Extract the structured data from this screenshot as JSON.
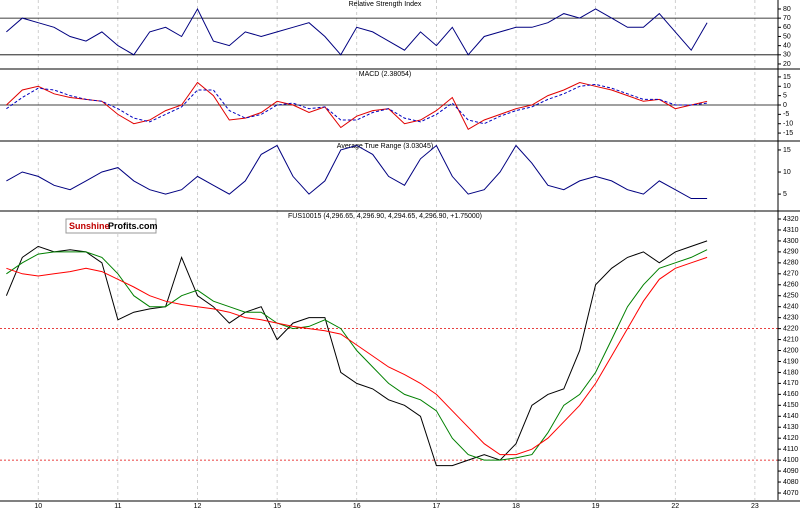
{
  "logo": {
    "part1": "Sunshine",
    "part2": "Profits.com"
  },
  "chart_data": [
    {
      "type": "line",
      "title": "Relative Strength Index",
      "xlim": [
        -0.48,
        9.29
      ],
      "ylim": [
        15.6,
        89.8
      ],
      "yticks": [
        20,
        30,
        40,
        50,
        60,
        70,
        80
      ],
      "levels": [
        70,
        30
      ],
      "x": [
        -0.4,
        -0.2,
        0,
        0.2,
        0.4,
        0.6,
        0.8,
        1,
        1.2,
        1.4,
        1.6,
        1.8,
        2,
        2.2,
        2.4,
        2.6,
        2.8,
        3,
        3.2,
        3.4,
        3.6,
        3.8,
        4,
        4.2,
        4.4,
        4.6,
        4.8,
        5,
        5.2,
        5.4,
        5.6,
        5.8,
        6,
        6.2,
        6.4,
        6.6,
        6.8,
        7,
        7.2,
        7.4,
        7.6,
        7.8,
        8,
        8.2,
        8.4
      ],
      "series": [
        {
          "color": "#000080",
          "values": [
            55,
            70,
            65,
            60,
            50,
            45,
            55,
            40,
            30,
            55,
            60,
            50,
            80,
            45,
            40,
            55,
            50,
            55,
            60,
            65,
            50,
            30,
            60,
            55,
            45,
            35,
            55,
            40,
            60,
            30,
            50,
            55,
            60,
            60,
            65,
            75,
            70,
            80,
            70,
            60,
            60,
            75,
            55,
            35,
            65
          ]
        }
      ]
    },
    {
      "type": "line",
      "title": "MACD (2.38054)",
      "xlim": [
        -0.48,
        9.29
      ],
      "ylim": [
        -18.7,
        18.7
      ],
      "yticks": [
        -15,
        -10,
        -5,
        0,
        5,
        10,
        15
      ],
      "levels": [
        0
      ],
      "x": [
        -0.4,
        -0.2,
        0,
        0.2,
        0.4,
        0.6,
        0.8,
        1,
        1.2,
        1.4,
        1.6,
        1.8,
        2,
        2.2,
        2.4,
        2.6,
        2.8,
        3,
        3.2,
        3.4,
        3.6,
        3.8,
        4,
        4.2,
        4.4,
        4.6,
        4.8,
        5,
        5.2,
        5.4,
        5.6,
        5.8,
        6,
        6.2,
        6.4,
        6.6,
        6.8,
        7,
        7.2,
        7.4,
        7.6,
        7.8,
        8,
        8.2,
        8.4
      ],
      "series": [
        {
          "color": "#e00000",
          "values": [
            0,
            8,
            10,
            6,
            4,
            3,
            2,
            -5,
            -10,
            -8,
            -3,
            0,
            12,
            5,
            -8,
            -7,
            -4,
            2,
            0,
            -4,
            -1,
            -12,
            -6,
            -3,
            -2,
            -10,
            -8,
            -3,
            4,
            -13,
            -8,
            -5,
            -2,
            0,
            5,
            8,
            12,
            10,
            8,
            5,
            2,
            3,
            -2,
            0,
            2
          ]
        },
        {
          "color": "#0000c0",
          "dash": true,
          "values": [
            -2,
            4,
            9,
            8,
            5,
            3,
            2,
            -2,
            -7,
            -9,
            -5,
            -1,
            8,
            8,
            -3,
            -7,
            -5,
            0,
            1,
            -2,
            -1,
            -8,
            -8,
            -4,
            -2,
            -7,
            -9,
            -5,
            1,
            -8,
            -10,
            -6,
            -3,
            -1,
            3,
            6,
            10,
            11,
            9,
            6,
            3,
            3,
            0,
            0,
            1
          ]
        }
      ]
    },
    {
      "type": "line",
      "title": "Average True Range (3.03045)",
      "xlim": [
        -0.48,
        9.29
      ],
      "ylim": [
        1.4,
        16.8
      ],
      "yticks": [
        5,
        10,
        15
      ],
      "x": [
        -0.4,
        -0.2,
        0,
        0.2,
        0.4,
        0.6,
        0.8,
        1,
        1.2,
        1.4,
        1.6,
        1.8,
        2,
        2.2,
        2.4,
        2.6,
        2.8,
        3,
        3.2,
        3.4,
        3.6,
        3.8,
        4,
        4.2,
        4.4,
        4.6,
        4.8,
        5,
        5.2,
        5.4,
        5.6,
        5.8,
        6,
        6.2,
        6.4,
        6.6,
        6.8,
        7,
        7.2,
        7.4,
        7.6,
        7.8,
        8,
        8.2,
        8.4
      ],
      "series": [
        {
          "color": "#000080",
          "values": [
            8,
            10,
            9,
            7,
            6,
            8,
            10,
            11,
            8,
            6,
            5,
            6,
            9,
            7,
            5,
            8,
            14,
            16,
            9,
            5,
            8,
            15,
            16,
            14,
            9,
            7,
            13,
            16,
            9,
            5,
            6,
            10,
            16,
            12,
            7,
            6,
            8,
            9,
            8,
            6,
            5,
            8,
            6,
            4,
            4
          ]
        }
      ]
    },
    {
      "type": "line",
      "title": "FUS10015 (4,296.65, 4,296.90, 4,294.65, 4,296.90, +1.75000)",
      "xlim": [
        -0.48,
        9.29
      ],
      "ylim": [
        4063.6,
        4326.4
      ],
      "yticks": [
        4070,
        4080,
        4090,
        4100,
        4110,
        4120,
        4130,
        4140,
        4150,
        4160,
        4170,
        4180,
        4190,
        4200,
        4210,
        4220,
        4230,
        4240,
        4250,
        4260,
        4270,
        4280,
        4290,
        4300,
        4310,
        4320
      ],
      "levels": [
        4220,
        4100
      ],
      "level_color": "#e00000",
      "xticks": [
        {
          "value": 0,
          "label": "10"
        },
        {
          "value": 1,
          "label": "11"
        },
        {
          "value": 2,
          "label": "12"
        },
        {
          "value": 3,
          "label": "15"
        },
        {
          "value": 4,
          "label": "16"
        },
        {
          "value": 5,
          "label": "17"
        },
        {
          "value": 6,
          "label": "18"
        },
        {
          "value": 7,
          "label": "19"
        },
        {
          "value": 8,
          "label": "22"
        },
        {
          "value": 9,
          "label": "23"
        }
      ],
      "x": [
        -0.4,
        -0.2,
        0,
        0.2,
        0.4,
        0.6,
        0.8,
        1,
        1.2,
        1.4,
        1.6,
        1.8,
        2,
        2.2,
        2.4,
        2.6,
        2.8,
        3,
        3.2,
        3.4,
        3.6,
        3.8,
        4,
        4.2,
        4.4,
        4.6,
        4.8,
        5,
        5.2,
        5.4,
        5.6,
        5.8,
        6,
        6.2,
        6.4,
        6.6,
        6.8,
        7,
        7.2,
        7.4,
        7.6,
        7.8,
        8,
        8.2,
        8.4
      ],
      "series": [
        {
          "color": "#000000",
          "values": [
            4250,
            4285,
            4295,
            4290,
            4292,
            4290,
            4280,
            4228,
            4235,
            4238,
            4240,
            4285,
            4250,
            4240,
            4225,
            4235,
            4240,
            4210,
            4225,
            4230,
            4230,
            4180,
            4170,
            4165,
            4155,
            4150,
            4140,
            4095,
            4095,
            4100,
            4105,
            4100,
            4115,
            4150,
            4160,
            4165,
            4200,
            4260,
            4275,
            4285,
            4290,
            4280,
            4290,
            4295,
            4300
          ]
        },
        {
          "color": "#008000",
          "values": [
            4270,
            4280,
            4288,
            4290,
            4290,
            4290,
            4285,
            4270,
            4250,
            4240,
            4240,
            4250,
            4255,
            4245,
            4240,
            4235,
            4235,
            4225,
            4220,
            4222,
            4228,
            4220,
            4200,
            4185,
            4170,
            4160,
            4155,
            4145,
            4120,
            4105,
            4100,
            4100,
            4102,
            4105,
            4125,
            4150,
            4160,
            4180,
            4210,
            4240,
            4260,
            4275,
            4280,
            4285,
            4292
          ]
        },
        {
          "color": "#ff0000",
          "values": [
            4275,
            4270,
            4268,
            4270,
            4272,
            4275,
            4272,
            4265,
            4258,
            4250,
            4245,
            4242,
            4240,
            4238,
            4235,
            4230,
            4228,
            4225,
            4222,
            4220,
            4218,
            4215,
            4205,
            4195,
            4185,
            4178,
            4170,
            4160,
            4145,
            4130,
            4115,
            4105,
            4105,
            4110,
            4120,
            4135,
            4150,
            4170,
            4195,
            4220,
            4245,
            4265,
            4275,
            4280,
            4285
          ]
        }
      ]
    }
  ]
}
